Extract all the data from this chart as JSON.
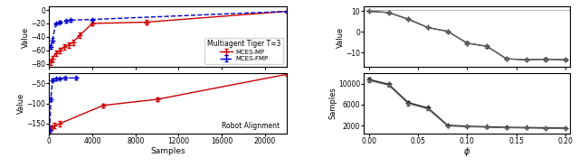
{
  "left_top": {
    "ylabel": "Value",
    "xlim": [
      0,
      11000
    ],
    "ylim": [
      -85,
      5
    ],
    "yticks": [
      -80,
      -60,
      -40,
      -20,
      0
    ],
    "xticks": [
      0,
      2000,
      4000,
      6000,
      8000,
      10000
    ],
    "mces_mp_x": [
      50,
      150,
      300,
      500,
      700,
      900,
      1100,
      1400,
      2000,
      4500,
      11000
    ],
    "mces_mp_y": [
      -78,
      -72,
      -65,
      -60,
      -55,
      -52,
      -48,
      -38,
      -20,
      -18,
      -2
    ],
    "mces_mp_err": [
      4,
      4,
      4,
      4,
      4,
      4,
      4,
      4,
      3,
      3,
      1
    ],
    "mces_fmp_x": [
      50,
      150,
      300,
      500,
      800,
      1000,
      2000,
      11000
    ],
    "mces_fmp_y": [
      -55,
      -45,
      -20,
      -18,
      -16,
      -15,
      -14,
      -2
    ],
    "mces_fmp_err": [
      3,
      3,
      2,
      2,
      2,
      2,
      1,
      1
    ],
    "legend_title": "Multiagent Tiger T=3",
    "mp_color": "#cc0000",
    "fmp_color": "#0000cc",
    "mp_label": "MCES-MP",
    "fmp_label": "MCES-FMP"
  },
  "left_bottom": {
    "label": "Robot Alignment",
    "ylabel": "Value",
    "xlabel": "Samples",
    "xlim": [
      0,
      22000
    ],
    "ylim": [
      -175,
      -25
    ],
    "yticks": [
      -150,
      -100,
      -50
    ],
    "xticks": [
      0,
      4000,
      8000,
      12000,
      16000,
      20000
    ],
    "mces_mp_x": [
      50,
      200,
      500,
      1000,
      5000,
      10000,
      22000
    ],
    "mces_mp_y": [
      -165,
      -160,
      -155,
      -150,
      -105,
      -90,
      -28
    ],
    "mces_mp_err": [
      6,
      6,
      6,
      6,
      5,
      5,
      4
    ],
    "mces_fmp_x": [
      50,
      150,
      300,
      600,
      1000,
      1500,
      2500
    ],
    "mces_fmp_y": [
      -165,
      -90,
      -42,
      -39,
      -38,
      -37,
      -37
    ],
    "mces_fmp_err": [
      5,
      4,
      3,
      3,
      3,
      3,
      3
    ],
    "mp_color": "#cc0000",
    "fmp_color": "#0000cc"
  },
  "right_top": {
    "ylabel": "Value",
    "xlim": [
      -0.005,
      0.205
    ],
    "ylim": [
      -17,
      12
    ],
    "yticks": [
      -10,
      0,
      10
    ],
    "xticks": [
      0.0,
      0.05,
      0.1,
      0.15,
      0.2
    ],
    "xticklabels": [
      "0.00",
      "0.05",
      "0.10",
      "0.15",
      "0.20"
    ],
    "phi_x": [
      0.0,
      0.02,
      0.04,
      0.06,
      0.08,
      0.1,
      0.12,
      0.14,
      0.16,
      0.18,
      0.2
    ],
    "phi_y1": [
      9.8,
      9.2,
      6.0,
      2.0,
      0.2,
      -5.5,
      -7.0,
      -13.0,
      -13.5,
      -13.2,
      -13.5
    ],
    "phi_y1_err": [
      0.3,
      0.3,
      0.4,
      0.4,
      0.4,
      0.6,
      0.6,
      0.5,
      0.5,
      0.5,
      0.5
    ],
    "phi_y2": [
      9.8,
      9.2,
      6.0,
      2.0,
      0.2,
      -5.5,
      -7.0,
      -13.0,
      -13.5,
      -13.2,
      -13.5
    ],
    "phi_y2_err": [
      0.3,
      0.3,
      0.4,
      0.4,
      0.4,
      0.6,
      0.6,
      0.5,
      0.5,
      0.5,
      0.5
    ],
    "color1": "#222222",
    "color2": "#666666",
    "hline_y": 10.5
  },
  "right_bottom": {
    "ylabel": "Samples",
    "xlabel": "ϕ",
    "xlim": [
      -0.005,
      0.205
    ],
    "ylim": [
      500,
      12000
    ],
    "yticks": [
      2000,
      6000,
      10000
    ],
    "xticks": [
      0.0,
      0.05,
      0.1,
      0.15,
      0.2
    ],
    "xticklabels": [
      "0.00",
      "0.05",
      "0.10",
      "0.15",
      "0.20"
    ],
    "phi_x": [
      0.0,
      0.02,
      0.04,
      0.06,
      0.08,
      0.1,
      0.12,
      0.14,
      0.16,
      0.18,
      0.2
    ],
    "phi_y1": [
      10800,
      9900,
      6400,
      5400,
      2100,
      1900,
      1800,
      1700,
      1650,
      1600,
      1550
    ],
    "phi_y1_err": [
      300,
      300,
      300,
      300,
      100,
      100,
      100,
      100,
      100,
      100,
      100
    ],
    "phi_y2": [
      10600,
      9700,
      6200,
      5200,
      1950,
      1800,
      1700,
      1600,
      1550,
      1500,
      1450
    ],
    "phi_y2_err": [
      300,
      300,
      300,
      300,
      100,
      100,
      100,
      100,
      100,
      100,
      100
    ],
    "color1": "#222222",
    "color2": "#666666"
  }
}
